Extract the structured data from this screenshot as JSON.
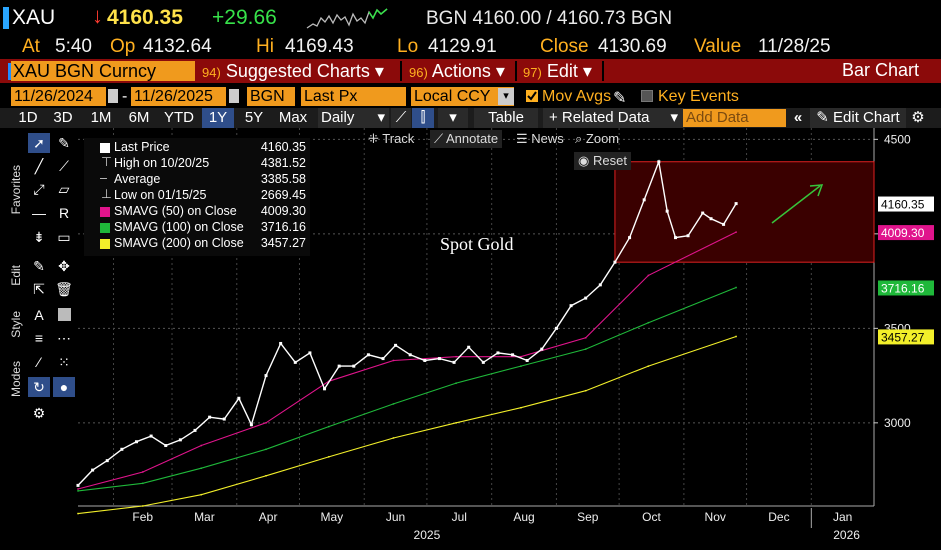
{
  "header": {
    "ticker": "XAU",
    "arrow": "↓",
    "last": "4160.35",
    "change": "+29.66",
    "bid_ask": "BGN 4160.00 / 4160.73 BGN",
    "at_label": "At",
    "at_value": "5:40",
    "op_label": "Op",
    "op_value": "4132.64",
    "hi_label": "Hi",
    "hi_value": "4169.43",
    "lo_label": "Lo",
    "lo_value": "4129.91",
    "close_label": "Close",
    "close_value": "4130.69",
    "value_label": "Value",
    "value_value": "11/28/25"
  },
  "menu_bar": {
    "security": "XAU BGN Curncy",
    "items": [
      {
        "num": "94)",
        "label": "Suggested Charts"
      },
      {
        "num": "96)",
        "label": "Actions"
      },
      {
        "num": "97)",
        "label": "Edit"
      }
    ],
    "chart_type": "Bar Chart"
  },
  "settings": {
    "start_date": "11/26/2024",
    "end_date": "11/26/2025",
    "source": "BGN",
    "field": "Last Px",
    "currency": "Local CCY",
    "mov_avgs": "Mov Avgs",
    "key_events": "Key Events"
  },
  "toolbar": {
    "ranges": [
      "1D",
      "3D",
      "1M",
      "6M",
      "YTD",
      "1Y",
      "5Y",
      "Max"
    ],
    "active_range": "1Y",
    "period": "Daily",
    "table": "Table",
    "related": "+ Related Data",
    "add_data_placeholder": "Add Data",
    "edit_chart": "Edit Chart"
  },
  "side_tabs": [
    "Favorites",
    "Edit",
    "Style",
    "Modes"
  ],
  "chart_controls": {
    "track": "Track",
    "annotate": "Annotate",
    "news": "News",
    "zoom": "Zoom",
    "reset": "Reset"
  },
  "legend": [
    {
      "name": "Last Price",
      "value": "4160.35",
      "color": "#ffffff"
    },
    {
      "name": "High on 10/20/25",
      "value": "4381.52",
      "color": ""
    },
    {
      "name": "Average",
      "value": "3385.58",
      "color": ""
    },
    {
      "name": "Low on 01/15/25",
      "value": "2669.45",
      "color": ""
    },
    {
      "name": "SMAVG (50)  on Close",
      "value": "4009.30",
      "color": "#e0148c"
    },
    {
      "name": "SMAVG (100)  on Close",
      "value": "3716.16",
      "color": "#1fb83a"
    },
    {
      "name": "SMAVG (200)  on Close",
      "value": "3457.27",
      "color": "#f2ef2a"
    }
  ],
  "colors": {
    "accent": "#f09a1d",
    "header_red": "#8b0a0a",
    "price": "#ffffff",
    "sma50": "#e0148c",
    "sma100": "#1fb83a",
    "sma200": "#f2ef2a",
    "box_fill": "#3a0000",
    "box_line": "#e02020",
    "arrow": "#37c43a"
  },
  "chart_data": {
    "type": "line",
    "annotation": "Spot Gold",
    "x_labels": [
      "Feb",
      "Mar",
      "Apr",
      "May",
      "Jun",
      "Jul",
      "Aug",
      "Sep",
      "Oct",
      "Nov",
      "Dec",
      "Jan"
    ],
    "year_labels": [
      "2025",
      "2026"
    ],
    "y_ticks": [
      3000,
      3500,
      4000,
      4500
    ],
    "ylim": [
      2560,
      4560
    ],
    "x_start": "2025-01-15",
    "x_end": "2026-01-31",
    "series": [
      {
        "name": "Last Price",
        "x": [
          "2025-01-15",
          "2025-01-22",
          "2025-01-29",
          "2025-02-05",
          "2025-02-12",
          "2025-02-19",
          "2025-02-26",
          "2025-03-05",
          "2025-03-12",
          "2025-03-19",
          "2025-03-26",
          "2025-04-02",
          "2025-04-08",
          "2025-04-15",
          "2025-04-22",
          "2025-04-29",
          "2025-05-06",
          "2025-05-13",
          "2025-05-20",
          "2025-05-27",
          "2025-06-03",
          "2025-06-10",
          "2025-06-16",
          "2025-06-23",
          "2025-06-30",
          "2025-07-07",
          "2025-07-14",
          "2025-07-21",
          "2025-07-28",
          "2025-08-04",
          "2025-08-11",
          "2025-08-18",
          "2025-08-25",
          "2025-09-01",
          "2025-09-08",
          "2025-09-15",
          "2025-09-22",
          "2025-09-29",
          "2025-10-06",
          "2025-10-13",
          "2025-10-20",
          "2025-10-24",
          "2025-10-28",
          "2025-11-03",
          "2025-11-10",
          "2025-11-14",
          "2025-11-20",
          "2025-11-26"
        ],
        "y": [
          2669,
          2750,
          2800,
          2860,
          2900,
          2930,
          2880,
          2910,
          2960,
          3030,
          3020,
          3130,
          2990,
          3250,
          3420,
          3320,
          3370,
          3180,
          3300,
          3300,
          3360,
          3340,
          3410,
          3360,
          3330,
          3340,
          3320,
          3400,
          3320,
          3370,
          3360,
          3330,
          3390,
          3500,
          3620,
          3660,
          3730,
          3850,
          3980,
          4180,
          4381,
          4120,
          3980,
          3990,
          4110,
          4080,
          4050,
          4160
        ]
      },
      {
        "name": "SMAVG (50)",
        "x": [
          "2025-01-15",
          "2025-02-15",
          "2025-03-15",
          "2025-04-15",
          "2025-05-15",
          "2025-06-15",
          "2025-07-15",
          "2025-08-15",
          "2025-09-15",
          "2025-10-15",
          "2025-11-26"
        ],
        "y": [
          2650,
          2740,
          2880,
          3000,
          3220,
          3330,
          3350,
          3350,
          3450,
          3780,
          4009
        ]
      },
      {
        "name": "SMAVG (100)",
        "x": [
          "2025-01-15",
          "2025-02-15",
          "2025-03-15",
          "2025-04-15",
          "2025-05-15",
          "2025-06-15",
          "2025-07-15",
          "2025-08-15",
          "2025-09-15",
          "2025-10-15",
          "2025-11-26"
        ],
        "y": [
          2640,
          2680,
          2760,
          2860,
          2980,
          3100,
          3210,
          3300,
          3390,
          3530,
          3716
        ]
      },
      {
        "name": "SMAVG (200)",
        "x": [
          "2025-01-15",
          "2025-02-15",
          "2025-03-15",
          "2025-04-15",
          "2025-05-15",
          "2025-06-15",
          "2025-07-15",
          "2025-08-15",
          "2025-09-15",
          "2025-10-15",
          "2025-11-26"
        ],
        "y": [
          2520,
          2560,
          2620,
          2720,
          2820,
          2920,
          3000,
          3080,
          3170,
          3300,
          3457
        ]
      }
    ],
    "highlight_box": {
      "x_start": "2025-09-29",
      "x_end": "2026-01-31",
      "y_low": 3850,
      "y_high": 4381.52
    },
    "price_tags": [
      {
        "value": "4160.35",
        "bg": "#ffffff",
        "fg": "#000000"
      },
      {
        "value": "4009.30",
        "bg": "#e0148c",
        "fg": "#ffffff"
      },
      {
        "value": "3716.16",
        "bg": "#1fb83a",
        "fg": "#ffffff"
      },
      {
        "value": "3457.27",
        "bg": "#f2ef2a",
        "fg": "#000000"
      }
    ],
    "grid": true
  }
}
